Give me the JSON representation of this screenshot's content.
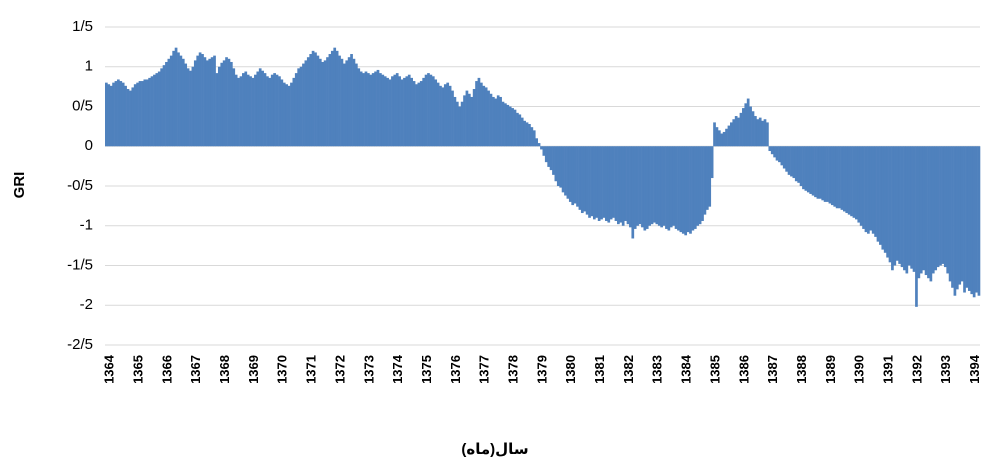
{
  "chart_data": {
    "type": "bar",
    "y_label": "GRI",
    "x_label": "سال(ماه)",
    "color": "#4f81bd",
    "grid": true,
    "ylim": [
      -2.5,
      1.5
    ],
    "yticks": [
      {
        "value": -2.5,
        "label": "-2/5"
      },
      -2,
      {
        "value": -1.5,
        "label": "-1/5"
      },
      -1,
      {
        "value": -0.5,
        "label": "-0/5"
      },
      0,
      {
        "value": 0.5,
        "label": "0/5"
      },
      1,
      {
        "value": 1.5,
        "label": "1/5"
      }
    ],
    "categories": [
      "1364",
      null,
      null,
      null,
      null,
      null,
      null,
      null,
      null,
      null,
      null,
      null,
      "1365",
      null,
      null,
      null,
      null,
      null,
      null,
      null,
      null,
      null,
      null,
      null,
      "1366",
      null,
      null,
      null,
      null,
      null,
      null,
      null,
      null,
      null,
      null,
      null,
      "1367",
      null,
      null,
      null,
      null,
      null,
      null,
      null,
      null,
      null,
      null,
      null,
      "1368",
      null,
      null,
      null,
      null,
      null,
      null,
      null,
      null,
      null,
      null,
      null,
      "1369",
      null,
      null,
      null,
      null,
      null,
      null,
      null,
      null,
      null,
      null,
      null,
      "1370",
      null,
      null,
      null,
      null,
      null,
      null,
      null,
      null,
      null,
      null,
      null,
      "1371",
      null,
      null,
      null,
      null,
      null,
      null,
      null,
      null,
      null,
      null,
      null,
      "1372",
      null,
      null,
      null,
      null,
      null,
      null,
      null,
      null,
      null,
      null,
      null,
      "1373",
      null,
      null,
      null,
      null,
      null,
      null,
      null,
      null,
      null,
      null,
      null,
      "1374",
      null,
      null,
      null,
      null,
      null,
      null,
      null,
      null,
      null,
      null,
      null,
      "1375",
      null,
      null,
      null,
      null,
      null,
      null,
      null,
      null,
      null,
      null,
      null,
      "1376",
      null,
      null,
      null,
      null,
      null,
      null,
      null,
      null,
      null,
      null,
      null,
      "1377",
      null,
      null,
      null,
      null,
      null,
      null,
      null,
      null,
      null,
      null,
      null,
      "1378",
      null,
      null,
      null,
      null,
      null,
      null,
      null,
      null,
      null,
      null,
      null,
      "1379",
      null,
      null,
      null,
      null,
      null,
      null,
      null,
      null,
      null,
      null,
      null,
      "1380",
      null,
      null,
      null,
      null,
      null,
      null,
      null,
      null,
      null,
      null,
      null,
      "1381",
      null,
      null,
      null,
      null,
      null,
      null,
      null,
      null,
      null,
      null,
      null,
      "1382",
      null,
      null,
      null,
      null,
      null,
      null,
      null,
      null,
      null,
      null,
      null,
      "1383",
      null,
      null,
      null,
      null,
      null,
      null,
      null,
      null,
      null,
      null,
      null,
      "1384",
      null,
      null,
      null,
      null,
      null,
      null,
      null,
      null,
      null,
      null,
      null,
      "1385",
      null,
      null,
      null,
      null,
      null,
      null,
      null,
      null,
      null,
      null,
      null,
      "1386",
      null,
      null,
      null,
      null,
      null,
      null,
      null,
      null,
      null,
      null,
      null,
      "1387",
      null,
      null,
      null,
      null,
      null,
      null,
      null,
      null,
      null,
      null,
      null,
      "1388",
      null,
      null,
      null,
      null,
      null,
      null,
      null,
      null,
      null,
      null,
      null,
      "1389",
      null,
      null,
      null,
      null,
      null,
      null,
      null,
      null,
      null,
      null,
      null,
      "1390",
      null,
      null,
      null,
      null,
      null,
      null,
      null,
      null,
      null,
      null,
      null,
      "1391",
      null,
      null,
      null,
      null,
      null,
      null,
      null,
      null,
      null,
      null,
      null,
      "1392",
      null,
      null,
      null,
      null,
      null,
      null,
      null,
      null,
      null,
      null,
      null,
      "1393",
      null,
      null,
      null,
      null,
      null,
      null,
      null,
      null,
      null,
      null,
      null,
      "1394",
      null,
      null,
      null
    ],
    "values": [
      0.8,
      0.78,
      0.76,
      0.8,
      0.82,
      0.84,
      0.82,
      0.8,
      0.76,
      0.72,
      0.7,
      0.74,
      0.78,
      0.8,
      0.82,
      0.82,
      0.84,
      0.84,
      0.86,
      0.88,
      0.9,
      0.92,
      0.94,
      0.98,
      1.02,
      1.06,
      1.1,
      1.14,
      1.2,
      1.24,
      1.18,
      1.14,
      1.1,
      1.04,
      0.98,
      0.95,
      1.0,
      1.08,
      1.14,
      1.18,
      1.16,
      1.12,
      1.08,
      1.1,
      1.12,
      1.14,
      0.92,
      1.0,
      1.05,
      1.08,
      1.12,
      1.1,
      1.06,
      0.98,
      0.9,
      0.86,
      0.88,
      0.92,
      0.94,
      0.9,
      0.88,
      0.86,
      0.9,
      0.94,
      0.98,
      0.95,
      0.92,
      0.88,
      0.86,
      0.9,
      0.92,
      0.9,
      0.88,
      0.84,
      0.8,
      0.78,
      0.76,
      0.8,
      0.86,
      0.92,
      0.98,
      1.0,
      1.04,
      1.08,
      1.12,
      1.16,
      1.2,
      1.18,
      1.14,
      1.1,
      1.06,
      1.08,
      1.12,
      1.16,
      1.2,
      1.24,
      1.2,
      1.14,
      1.1,
      1.04,
      1.08,
      1.12,
      1.16,
      1.1,
      1.04,
      0.98,
      0.94,
      0.92,
      0.94,
      0.92,
      0.9,
      0.92,
      0.94,
      0.96,
      0.92,
      0.9,
      0.88,
      0.86,
      0.84,
      0.88,
      0.9,
      0.92,
      0.88,
      0.84,
      0.86,
      0.88,
      0.9,
      0.86,
      0.82,
      0.78,
      0.8,
      0.82,
      0.86,
      0.9,
      0.92,
      0.9,
      0.88,
      0.84,
      0.8,
      0.76,
      0.74,
      0.78,
      0.8,
      0.76,
      0.7,
      0.62,
      0.56,
      0.5,
      0.56,
      0.64,
      0.7,
      0.66,
      0.62,
      0.72,
      0.82,
      0.86,
      0.8,
      0.76,
      0.74,
      0.7,
      0.66,
      0.62,
      0.6,
      0.64,
      0.62,
      0.56,
      0.54,
      0.52,
      0.5,
      0.48,
      0.46,
      0.42,
      0.4,
      0.36,
      0.32,
      0.3,
      0.28,
      0.24,
      0.2,
      0.1,
      0.04,
      -0.04,
      -0.12,
      -0.2,
      -0.26,
      -0.3,
      -0.36,
      -0.44,
      -0.5,
      -0.52,
      -0.58,
      -0.62,
      -0.66,
      -0.7,
      -0.74,
      -0.72,
      -0.76,
      -0.8,
      -0.84,
      -0.82,
      -0.86,
      -0.9,
      -0.88,
      -0.92,
      -0.9,
      -0.94,
      -0.92,
      -0.9,
      -0.94,
      -0.96,
      -0.92,
      -0.9,
      -0.94,
      -0.98,
      -0.96,
      -1.0,
      -0.94,
      -0.98,
      -1.02,
      -1.16,
      -1.04,
      -1.0,
      -0.98,
      -1.02,
      -1.06,
      -1.04,
      -1.0,
      -0.98,
      -0.96,
      -0.98,
      -1.0,
      -1.02,
      -1.0,
      -1.04,
      -1.06,
      -1.02,
      -1.0,
      -1.04,
      -1.06,
      -1.08,
      -1.1,
      -1.12,
      -1.08,
      -1.1,
      -1.06,
      -1.04,
      -1.0,
      -0.98,
      -0.94,
      -0.86,
      -0.8,
      -0.76,
      -0.4,
      0.3,
      0.24,
      0.2,
      0.16,
      0.18,
      0.22,
      0.26,
      0.3,
      0.34,
      0.38,
      0.36,
      0.42,
      0.48,
      0.54,
      0.6,
      0.5,
      0.44,
      0.38,
      0.34,
      0.36,
      0.32,
      0.34,
      0.3,
      -0.06,
      -0.1,
      -0.14,
      -0.18,
      -0.2,
      -0.24,
      -0.28,
      -0.32,
      -0.36,
      -0.38,
      -0.4,
      -0.44,
      -0.46,
      -0.5,
      -0.54,
      -0.56,
      -0.58,
      -0.6,
      -0.62,
      -0.64,
      -0.66,
      -0.66,
      -0.68,
      -0.7,
      -0.7,
      -0.72,
      -0.74,
      -0.76,
      -0.78,
      -0.78,
      -0.8,
      -0.82,
      -0.84,
      -0.86,
      -0.88,
      -0.9,
      -0.92,
      -0.96,
      -1.0,
      -1.04,
      -1.08,
      -1.1,
      -1.06,
      -1.1,
      -1.14,
      -1.2,
      -1.24,
      -1.3,
      -1.34,
      -1.4,
      -1.46,
      -1.56,
      -1.5,
      -1.44,
      -1.48,
      -1.52,
      -1.56,
      -1.6,
      -1.5,
      -1.54,
      -1.58,
      -2.02,
      -1.66,
      -1.6,
      -1.56,
      -1.62,
      -1.66,
      -1.7,
      -1.6,
      -1.56,
      -1.52,
      -1.5,
      -1.48,
      -1.52,
      -1.6,
      -1.7,
      -1.78,
      -1.88,
      -1.8,
      -1.74,
      -1.7,
      -1.84,
      -1.78,
      -1.82,
      -1.86,
      -1.9,
      -1.84,
      -1.88
    ]
  }
}
